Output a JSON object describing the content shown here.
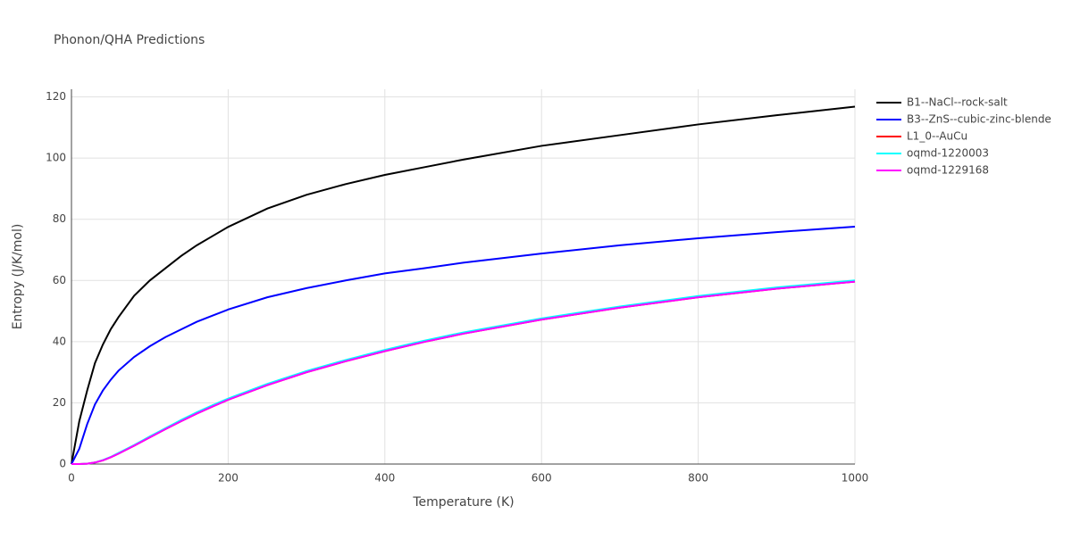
{
  "chart_data": {
    "type": "line",
    "title": "Phonon/QHA Predictions",
    "xlabel": "Temperature (K)",
    "ylabel": "Entropy (J/K/mol)",
    "xlim": [
      0,
      1000
    ],
    "ylim": [
      0,
      122.5
    ],
    "xticks": [
      0,
      200,
      400,
      600,
      800,
      1000
    ],
    "yticks": [
      0,
      20,
      40,
      60,
      80,
      100,
      120
    ],
    "grid": true,
    "legend": "outside-right",
    "x": [
      0,
      10,
      20,
      30,
      40,
      50,
      60,
      80,
      100,
      120,
      140,
      160,
      180,
      200,
      250,
      300,
      350,
      400,
      450,
      500,
      600,
      700,
      800,
      900,
      1000
    ],
    "series": [
      {
        "name": "B1--NaCl--rock-salt",
        "color": "#000000",
        "values": [
          0,
          14,
          24,
          33,
          39,
          44,
          48,
          55,
          60,
          64,
          68,
          71.5,
          74.5,
          77.5,
          83.5,
          88,
          91.5,
          94.5,
          97,
          99.5,
          104,
          107.5,
          111,
          114,
          116.8
        ]
      },
      {
        "name": "B3--ZnS--cubic-zinc-blende",
        "color": "#0000ff",
        "values": [
          0,
          5,
          13,
          19.5,
          24,
          27.5,
          30.5,
          35,
          38.5,
          41.5,
          44,
          46.5,
          48.5,
          50.5,
          54.5,
          57.5,
          60,
          62.3,
          64,
          65.8,
          68.8,
          71.5,
          73.8,
          75.8,
          77.6
        ]
      },
      {
        "name": "L1_0--AuCu",
        "color": "#ff0000",
        "values": [
          0,
          0,
          0.1,
          0.5,
          1.2,
          2.2,
          3.4,
          6,
          8.7,
          11.4,
          14,
          16.5,
          18.8,
          21,
          25.8,
          30,
          33.6,
          36.9,
          39.9,
          42.6,
          47.2,
          51.1,
          54.5,
          57.3,
          59.6
        ]
      },
      {
        "name": "oqmd-1220003",
        "color": "#00ffff",
        "values": [
          0,
          0,
          0.1,
          0.5,
          1.3,
          2.3,
          3.6,
          6.2,
          9,
          11.7,
          14.4,
          16.9,
          19.2,
          21.4,
          26.2,
          30.4,
          34,
          37.3,
          40.3,
          43,
          47.6,
          51.5,
          54.9,
          57.7,
          60
        ]
      },
      {
        "name": "oqmd-1229168",
        "color": "#ff00ff",
        "values": [
          0,
          0,
          0.1,
          0.5,
          1.2,
          2.2,
          3.4,
          6,
          8.7,
          11.4,
          14,
          16.5,
          18.8,
          21,
          25.8,
          30,
          33.6,
          36.9,
          39.9,
          42.6,
          47.2,
          51.1,
          54.5,
          57.3,
          59.6
        ]
      }
    ]
  }
}
